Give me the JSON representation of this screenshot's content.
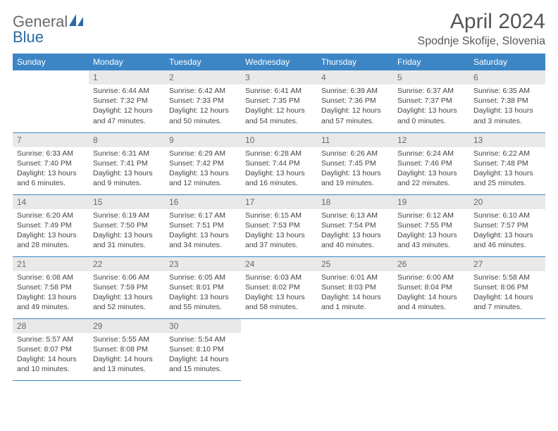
{
  "logo": {
    "part1": "General",
    "part2": "Blue"
  },
  "title": "April 2024",
  "location": "Spodnje Skofije, Slovenia",
  "colors": {
    "header_bg": "#3d86c6",
    "header_text": "#ffffff",
    "daynum_bg": "#e9e9e9",
    "daynum_text": "#6a6a6a",
    "border": "#3d86c6",
    "logo_gray": "#6a6a6a",
    "logo_blue": "#2b6aa8",
    "body_text": "#444444",
    "title_text": "#555555"
  },
  "weekdays": [
    "Sunday",
    "Monday",
    "Tuesday",
    "Wednesday",
    "Thursday",
    "Friday",
    "Saturday"
  ],
  "weeks": [
    [
      null,
      {
        "n": "1",
        "sr": "Sunrise: 6:44 AM",
        "ss": "Sunset: 7:32 PM",
        "d1": "Daylight: 12 hours",
        "d2": "and 47 minutes."
      },
      {
        "n": "2",
        "sr": "Sunrise: 6:42 AM",
        "ss": "Sunset: 7:33 PM",
        "d1": "Daylight: 12 hours",
        "d2": "and 50 minutes."
      },
      {
        "n": "3",
        "sr": "Sunrise: 6:41 AM",
        "ss": "Sunset: 7:35 PM",
        "d1": "Daylight: 12 hours",
        "d2": "and 54 minutes."
      },
      {
        "n": "4",
        "sr": "Sunrise: 6:39 AM",
        "ss": "Sunset: 7:36 PM",
        "d1": "Daylight: 12 hours",
        "d2": "and 57 minutes."
      },
      {
        "n": "5",
        "sr": "Sunrise: 6:37 AM",
        "ss": "Sunset: 7:37 PM",
        "d1": "Daylight: 13 hours",
        "d2": "and 0 minutes."
      },
      {
        "n": "6",
        "sr": "Sunrise: 6:35 AM",
        "ss": "Sunset: 7:38 PM",
        "d1": "Daylight: 13 hours",
        "d2": "and 3 minutes."
      }
    ],
    [
      {
        "n": "7",
        "sr": "Sunrise: 6:33 AM",
        "ss": "Sunset: 7:40 PM",
        "d1": "Daylight: 13 hours",
        "d2": "and 6 minutes."
      },
      {
        "n": "8",
        "sr": "Sunrise: 6:31 AM",
        "ss": "Sunset: 7:41 PM",
        "d1": "Daylight: 13 hours",
        "d2": "and 9 minutes."
      },
      {
        "n": "9",
        "sr": "Sunrise: 6:29 AM",
        "ss": "Sunset: 7:42 PM",
        "d1": "Daylight: 13 hours",
        "d2": "and 12 minutes."
      },
      {
        "n": "10",
        "sr": "Sunrise: 6:28 AM",
        "ss": "Sunset: 7:44 PM",
        "d1": "Daylight: 13 hours",
        "d2": "and 16 minutes."
      },
      {
        "n": "11",
        "sr": "Sunrise: 6:26 AM",
        "ss": "Sunset: 7:45 PM",
        "d1": "Daylight: 13 hours",
        "d2": "and 19 minutes."
      },
      {
        "n": "12",
        "sr": "Sunrise: 6:24 AM",
        "ss": "Sunset: 7:46 PM",
        "d1": "Daylight: 13 hours",
        "d2": "and 22 minutes."
      },
      {
        "n": "13",
        "sr": "Sunrise: 6:22 AM",
        "ss": "Sunset: 7:48 PM",
        "d1": "Daylight: 13 hours",
        "d2": "and 25 minutes."
      }
    ],
    [
      {
        "n": "14",
        "sr": "Sunrise: 6:20 AM",
        "ss": "Sunset: 7:49 PM",
        "d1": "Daylight: 13 hours",
        "d2": "and 28 minutes."
      },
      {
        "n": "15",
        "sr": "Sunrise: 6:19 AM",
        "ss": "Sunset: 7:50 PM",
        "d1": "Daylight: 13 hours",
        "d2": "and 31 minutes."
      },
      {
        "n": "16",
        "sr": "Sunrise: 6:17 AM",
        "ss": "Sunset: 7:51 PM",
        "d1": "Daylight: 13 hours",
        "d2": "and 34 minutes."
      },
      {
        "n": "17",
        "sr": "Sunrise: 6:15 AM",
        "ss": "Sunset: 7:53 PM",
        "d1": "Daylight: 13 hours",
        "d2": "and 37 minutes."
      },
      {
        "n": "18",
        "sr": "Sunrise: 6:13 AM",
        "ss": "Sunset: 7:54 PM",
        "d1": "Daylight: 13 hours",
        "d2": "and 40 minutes."
      },
      {
        "n": "19",
        "sr": "Sunrise: 6:12 AM",
        "ss": "Sunset: 7:55 PM",
        "d1": "Daylight: 13 hours",
        "d2": "and 43 minutes."
      },
      {
        "n": "20",
        "sr": "Sunrise: 6:10 AM",
        "ss": "Sunset: 7:57 PM",
        "d1": "Daylight: 13 hours",
        "d2": "and 46 minutes."
      }
    ],
    [
      {
        "n": "21",
        "sr": "Sunrise: 6:08 AM",
        "ss": "Sunset: 7:58 PM",
        "d1": "Daylight: 13 hours",
        "d2": "and 49 minutes."
      },
      {
        "n": "22",
        "sr": "Sunrise: 6:06 AM",
        "ss": "Sunset: 7:59 PM",
        "d1": "Daylight: 13 hours",
        "d2": "and 52 minutes."
      },
      {
        "n": "23",
        "sr": "Sunrise: 6:05 AM",
        "ss": "Sunset: 8:01 PM",
        "d1": "Daylight: 13 hours",
        "d2": "and 55 minutes."
      },
      {
        "n": "24",
        "sr": "Sunrise: 6:03 AM",
        "ss": "Sunset: 8:02 PM",
        "d1": "Daylight: 13 hours",
        "d2": "and 58 minutes."
      },
      {
        "n": "25",
        "sr": "Sunrise: 6:01 AM",
        "ss": "Sunset: 8:03 PM",
        "d1": "Daylight: 14 hours",
        "d2": "and 1 minute."
      },
      {
        "n": "26",
        "sr": "Sunrise: 6:00 AM",
        "ss": "Sunset: 8:04 PM",
        "d1": "Daylight: 14 hours",
        "d2": "and 4 minutes."
      },
      {
        "n": "27",
        "sr": "Sunrise: 5:58 AM",
        "ss": "Sunset: 8:06 PM",
        "d1": "Daylight: 14 hours",
        "d2": "and 7 minutes."
      }
    ],
    [
      {
        "n": "28",
        "sr": "Sunrise: 5:57 AM",
        "ss": "Sunset: 8:07 PM",
        "d1": "Daylight: 14 hours",
        "d2": "and 10 minutes."
      },
      {
        "n": "29",
        "sr": "Sunrise: 5:55 AM",
        "ss": "Sunset: 8:08 PM",
        "d1": "Daylight: 14 hours",
        "d2": "and 13 minutes."
      },
      {
        "n": "30",
        "sr": "Sunrise: 5:54 AM",
        "ss": "Sunset: 8:10 PM",
        "d1": "Daylight: 14 hours",
        "d2": "and 15 minutes."
      },
      null,
      null,
      null,
      null
    ]
  ]
}
